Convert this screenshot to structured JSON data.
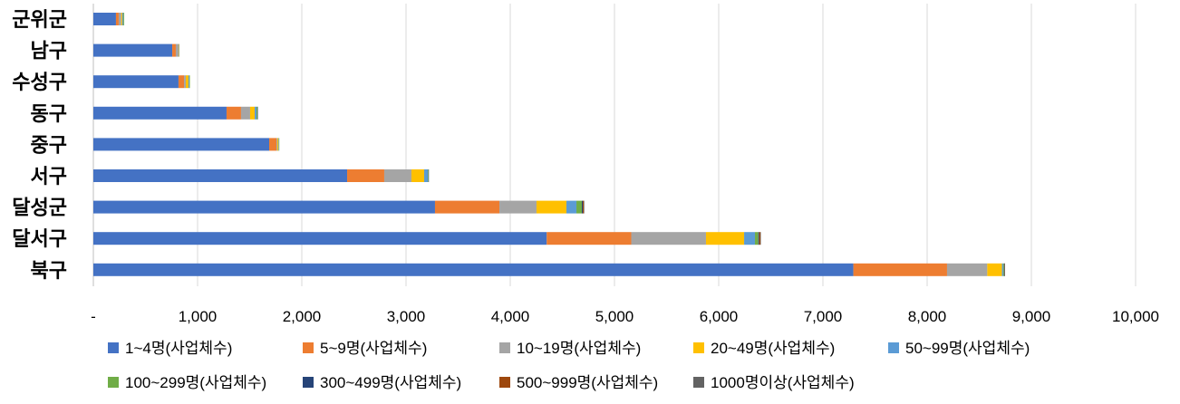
{
  "chart_data": {
    "type": "bar",
    "orientation": "horizontal",
    "stacked": true,
    "title": "",
    "xlabel": "",
    "ylabel": "",
    "xlim": [
      0,
      10000
    ],
    "grid": true,
    "legend_position": "bottom",
    "categories": [
      "군위군",
      "남구",
      "수성구",
      "동구",
      "중구",
      "서구",
      "달성군",
      "달서구",
      "북구"
    ],
    "x_tick_labels": [
      "-",
      "1,000",
      "2,000",
      "3,000",
      "4,000",
      "5,000",
      "6,000",
      "7,000",
      "8,000",
      "9,000",
      "10,000"
    ],
    "x_ticks": [
      0,
      1000,
      2000,
      3000,
      4000,
      5000,
      6000,
      7000,
      8000,
      9000,
      10000
    ],
    "series": [
      {
        "name": "1~4명(사업체수)",
        "color": "#4472C4",
        "values": [
          217,
          757,
          817,
          1278,
          1687,
          2435,
          3278,
          4350,
          7292
        ]
      },
      {
        "name": "5~9명(사업체수)",
        "color": "#ED7D31",
        "values": [
          26,
          34,
          53,
          139,
          70,
          356,
          618,
          811,
          899
        ]
      },
      {
        "name": "10~19명(사업체수)",
        "color": "#A5A5A5",
        "values": [
          25,
          26,
          17,
          87,
          8,
          261,
          356,
          717,
          386
        ]
      },
      {
        "name": "20~49명(사업체수)",
        "color": "#FFC000",
        "values": [
          10,
          5,
          26,
          44,
          10,
          122,
          287,
          366,
          141
        ]
      },
      {
        "name": "50~99명(사업체수)",
        "color": "#5B9BD5",
        "values": [
          10,
          4,
          9,
          17,
          5,
          35,
          96,
          104,
          12
        ]
      },
      {
        "name": "100~299명(사업체수)",
        "color": "#70AD47",
        "values": [
          8,
          0,
          2,
          9,
          2,
          6,
          52,
          32,
          8
        ]
      },
      {
        "name": "300~499명(사업체수)",
        "color": "#264478",
        "values": [
          0,
          0,
          0,
          2,
          0,
          2,
          9,
          8,
          3
        ]
      },
      {
        "name": "500~999명(사업체수)",
        "color": "#9E480E",
        "values": [
          0,
          0,
          0,
          0,
          0,
          0,
          10,
          12,
          2
        ]
      },
      {
        "name": "1000명이상(사업체수)",
        "color": "#636363",
        "values": [
          0,
          0,
          0,
          0,
          0,
          0,
          5,
          4,
          2
        ]
      }
    ]
  }
}
